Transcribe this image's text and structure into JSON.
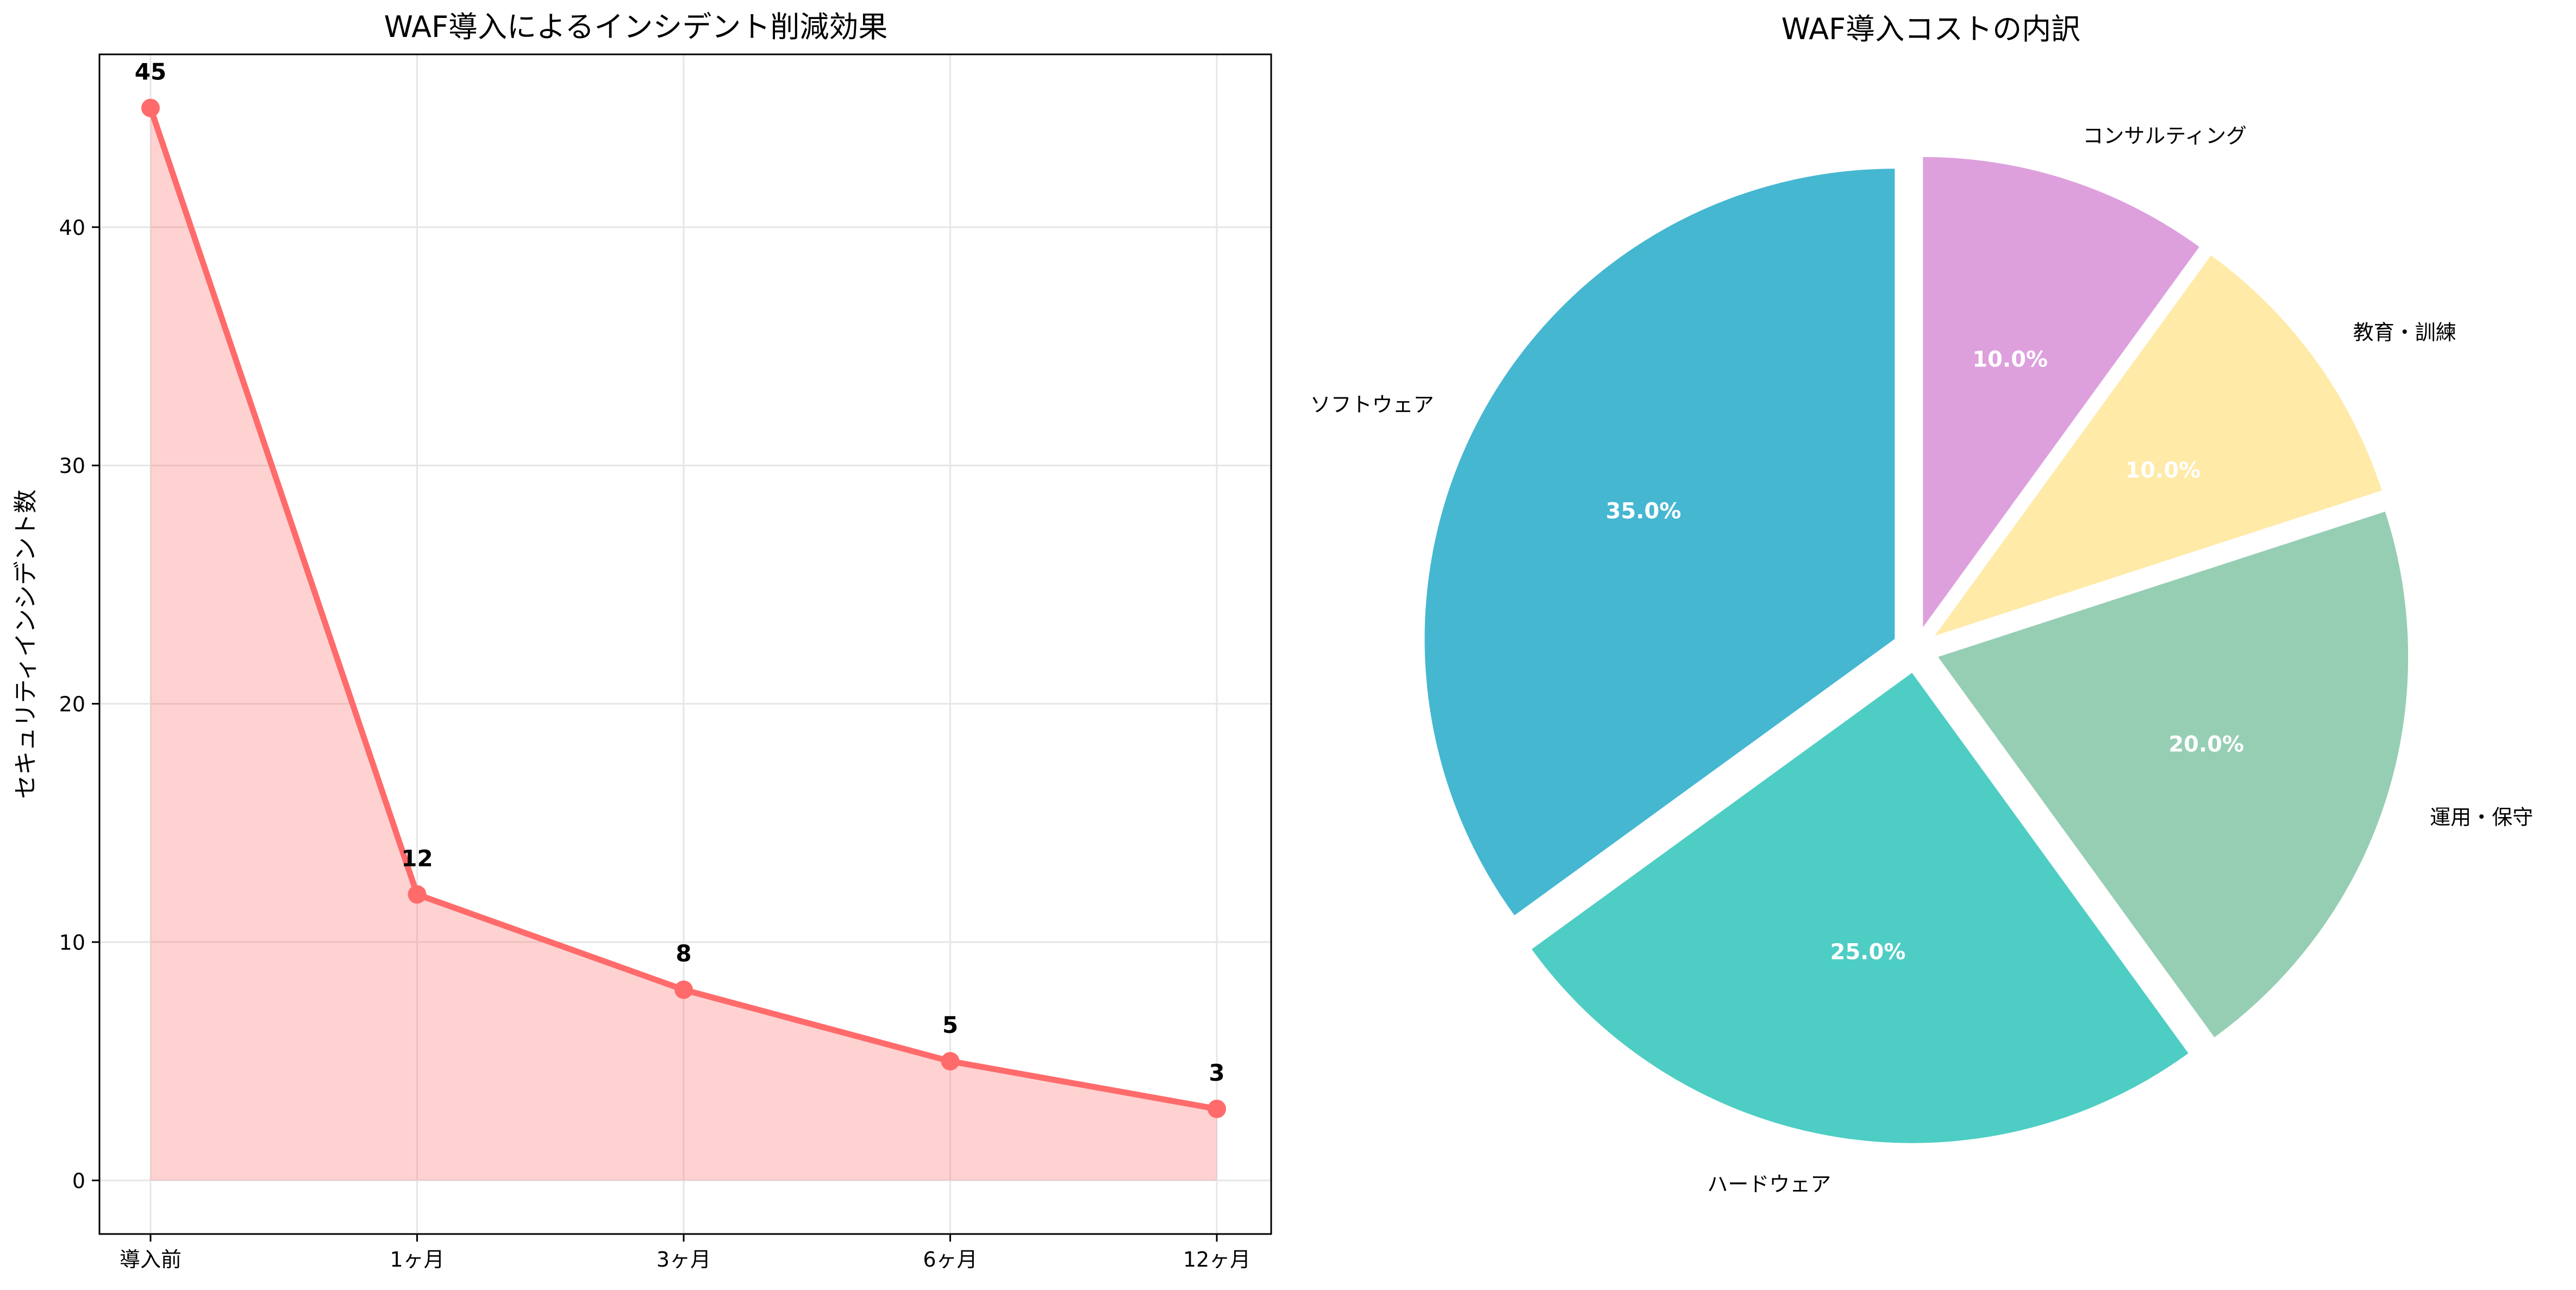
{
  "chart_data": [
    {
      "type": "line",
      "fill": "area",
      "title": "WAF導入によるインシデント削減効果",
      "xlabel": "",
      "ylabel": "セキュリティインシデント数",
      "categories": [
        "導入前",
        "1ヶ月",
        "3ヶ月",
        "6ヶ月",
        "12ヶ月"
      ],
      "values": [
        45,
        12,
        8,
        5,
        3
      ],
      "data_labels": [
        "45",
        "12",
        "8",
        "5",
        "3"
      ],
      "yticks": [
        0,
        10,
        20,
        30,
        40
      ],
      "ytick_labels": [
        "0",
        "10",
        "20",
        "30",
        "40"
      ],
      "ylim": [
        -2.25,
        47.25
      ],
      "grid": true,
      "color": "#ff6b6b",
      "fill_color": "#ff6b6b"
    },
    {
      "type": "pie",
      "title": "WAF導入コストの内訳",
      "labels": [
        "ソフトウェア",
        "ハードウェア",
        "運用・保守",
        "教育・訓練",
        "コンサルティング"
      ],
      "values": [
        35,
        25,
        20,
        10,
        10
      ],
      "pct_labels": [
        "35.0%",
        "25.0%",
        "20.0%",
        "10.0%",
        "10.0%"
      ],
      "colors": [
        "#45b7d1",
        "#4ecdc4",
        "#96ceb4",
        "#ffeaa7",
        "#dda0dd"
      ],
      "start_angle": 90,
      "direction": "counterclockwise",
      "explode": 0.05
    }
  ]
}
